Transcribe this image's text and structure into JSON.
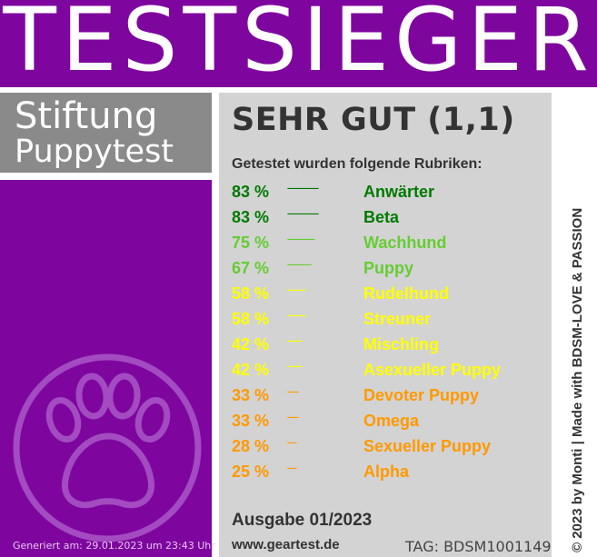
{
  "header": {
    "title": "TESTSIEGER"
  },
  "brand": {
    "line1": "Stiftung",
    "line2": "Puppytest"
  },
  "panel": {
    "verdict": "SEHR GUT (1,1)",
    "intro": "Getestet wurden folgende Rubriken:",
    "rows": [
      {
        "pct": "83 %",
        "dots": "-----------------",
        "label": "Anwärter",
        "color": "#007a00"
      },
      {
        "pct": "83 %",
        "dots": "-----------------",
        "label": "Beta",
        "color": "#007a00"
      },
      {
        "pct": "75 %",
        "dots": "---------------",
        "label": "Wachhund",
        "color": "#66cc33"
      },
      {
        "pct": "67 %",
        "dots": "-------------",
        "label": "Puppy",
        "color": "#66cc33"
      },
      {
        "pct": "58 %",
        "dots": "----------",
        "label": "Rudelhund",
        "color": "#ffff00"
      },
      {
        "pct": "58 %",
        "dots": "----------",
        "label": "Streuner",
        "color": "#ffff00"
      },
      {
        "pct": "42 %",
        "dots": "--------",
        "label": "Mischling",
        "color": "#ffff00"
      },
      {
        "pct": "42 %",
        "dots": "--------",
        "label": "Asexueller Puppy",
        "color": "#ffff00"
      },
      {
        "pct": "33 %",
        "dots": "------",
        "label": "Devoter Puppy",
        "color": "#ff9900"
      },
      {
        "pct": "33 %",
        "dots": "------",
        "label": "Omega",
        "color": "#ff9900"
      },
      {
        "pct": "28 %",
        "dots": "-----",
        "label": "Sexueller Puppy",
        "color": "#ff9900"
      },
      {
        "pct": "25 %",
        "dots": "-----",
        "label": "Alpha",
        "color": "#ff9900"
      }
    ],
    "issue": "Ausgabe 01/2023",
    "url": "www.geartest.de",
    "tag": "TAG: BDSM1001149"
  },
  "side_text": "© 2023 by Monti | Made with BDSM-LOVE & PASSION",
  "generated": "Generiert am: 29.01.2023 um 23:43 Uhr",
  "colors": {
    "purple": "#7e069f",
    "gray_box": "#8a8a8a",
    "panel": "#d3d3d3",
    "green_dark": "#007a00",
    "green_light": "#66cc33",
    "yellow": "#ffff00",
    "orange": "#ff9900"
  },
  "icons": [
    "paw-icon"
  ]
}
